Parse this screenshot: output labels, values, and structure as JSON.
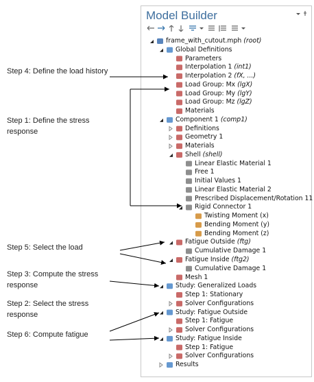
{
  "header": {
    "title": "Model Builder"
  },
  "tree": {
    "label": "frame_with_cutout.mph",
    "tag": "(root)",
    "children": [
      {
        "label": "Global Definitions",
        "children": [
          {
            "label": "Parameters"
          },
          {
            "label": "Interpolation 1",
            "tag": "(int1)"
          },
          {
            "label": "Interpolation 2",
            "tag": "(fX, ...)"
          },
          {
            "label": "Load Group: Mx",
            "tag": "(lgX)"
          },
          {
            "label": "Load Group: My",
            "tag": "(lgY)"
          },
          {
            "label": "Load Group: Mz",
            "tag": "(lgZ)"
          },
          {
            "label": "Materials"
          }
        ]
      },
      {
        "label": "Component 1",
        "tag": "(comp1)",
        "children": [
          {
            "label": "Definitions",
            "collapsed": true
          },
          {
            "label": "Geometry 1",
            "collapsed": true
          },
          {
            "label": "Materials",
            "collapsed": true
          },
          {
            "label": "Shell",
            "tag": "(shell)",
            "children": [
              {
                "label": "Linear Elastic Material 1"
              },
              {
                "label": "Free 1"
              },
              {
                "label": "Initial Values 1"
              },
              {
                "label": "Linear Elastic Material 2"
              },
              {
                "label": "Prescribed Displacement/Rotation 11"
              },
              {
                "label": "Rigid Connector 1",
                "children": [
                  {
                    "label": "Twisting Moment (x)"
                  },
                  {
                    "label": "Bending Moment (y)"
                  },
                  {
                    "label": "Bending Moment (z)"
                  }
                ]
              }
            ]
          },
          {
            "label": "Fatigue Outside",
            "tag": "(ftg)",
            "children": [
              {
                "label": "Cumulative Damage 1"
              }
            ]
          },
          {
            "label": "Fatigue Inside",
            "tag": "(ftg2)",
            "children": [
              {
                "label": "Cumulative Damage 1"
              }
            ]
          },
          {
            "label": "Mesh 1"
          }
        ]
      },
      {
        "label": "Study: Generalized Loads",
        "children": [
          {
            "label": "Step 1: Stationary"
          },
          {
            "label": "Solver Configurations",
            "collapsed": true
          }
        ]
      },
      {
        "label": "Study: Fatigue Outside",
        "children": [
          {
            "label": "Step 1: Fatigue"
          },
          {
            "label": "Solver Configurations",
            "collapsed": true
          }
        ]
      },
      {
        "label": "Study: Fatigue Inside",
        "children": [
          {
            "label": "Step 1: Fatigue"
          },
          {
            "label": "Solver Configurations",
            "collapsed": true
          }
        ]
      },
      {
        "label": "Results",
        "collapsed": true
      }
    ]
  },
  "annotations": [
    "Step 4: Define the load history",
    "Step 1: Define the stress response",
    "Step 5: Select the load",
    "Step 3: Compute the stress response",
    "Step 2: Select the stress response",
    "Step 6: Compute fatigue"
  ]
}
